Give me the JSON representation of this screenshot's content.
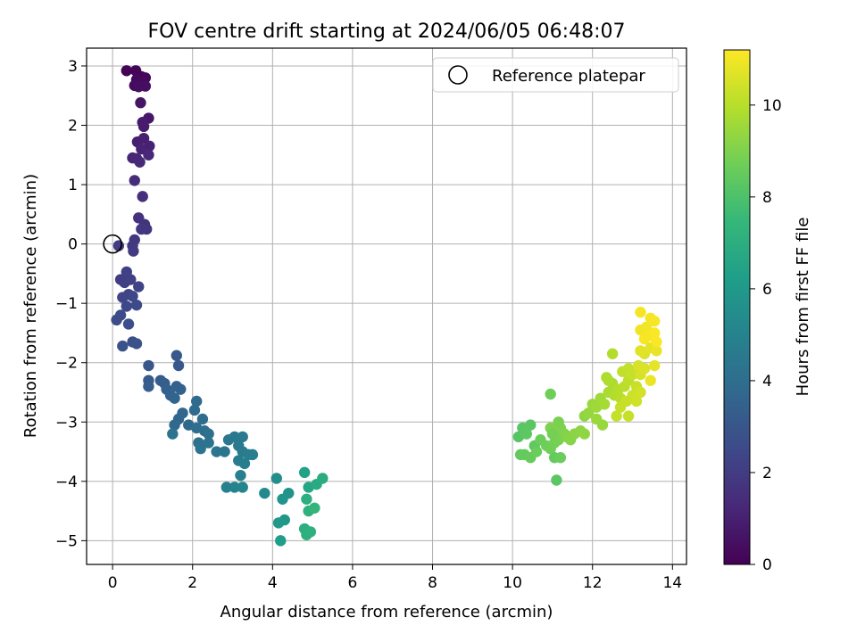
{
  "chart_data": {
    "type": "scatter",
    "title": "FOV centre drift starting at 2024/06/05 06:48:07",
    "xlabel": "Angular distance from reference (arcmin)",
    "ylabel": "Rotation from reference (arcmin)",
    "xlim": [
      -0.65,
      14.35
    ],
    "ylim": [
      -5.4,
      3.3
    ],
    "xticks": [
      0,
      2,
      4,
      6,
      8,
      10,
      12,
      14
    ],
    "yticks": [
      3,
      2,
      1,
      0,
      -1,
      -2,
      -3,
      -4,
      -5
    ],
    "grid": true,
    "legend": {
      "placement": "top-right",
      "entries": [
        "Reference platepar"
      ]
    },
    "reference_point": {
      "x": 0,
      "y": 0
    },
    "colorbar": {
      "label": "Hours from first FF file",
      "range": [
        0,
        11.2
      ],
      "ticks": [
        0,
        2,
        4,
        6,
        8,
        10
      ],
      "colormap": "viridis"
    },
    "series": [
      {
        "marker_color": "by hours (viridis)",
        "points": [
          [
            0.35,
            2.92,
            0.05
          ],
          [
            0.58,
            2.92,
            0.1
          ],
          [
            0.72,
            2.82,
            0.15
          ],
          [
            0.82,
            2.8,
            0.2
          ],
          [
            0.6,
            2.77,
            0.25
          ],
          [
            0.75,
            2.72,
            0.3
          ],
          [
            0.55,
            2.67,
            0.35
          ],
          [
            0.65,
            2.65,
            0.4
          ],
          [
            0.82,
            2.66,
            0.45
          ],
          [
            0.7,
            2.38,
            0.6
          ],
          [
            0.9,
            2.12,
            0.7
          ],
          [
            0.75,
            2.05,
            0.8
          ],
          [
            0.78,
            1.98,
            0.85
          ],
          [
            0.62,
            1.72,
            0.95
          ],
          [
            0.78,
            1.78,
            1.0
          ],
          [
            0.92,
            1.65,
            1.05
          ],
          [
            0.72,
            1.6,
            1.1
          ],
          [
            0.5,
            1.45,
            1.15
          ],
          [
            0.6,
            1.44,
            1.2
          ],
          [
            0.9,
            1.5,
            1.25
          ],
          [
            0.68,
            1.38,
            1.3
          ],
          [
            0.55,
            1.07,
            1.4
          ],
          [
            0.75,
            0.8,
            1.5
          ],
          [
            0.65,
            0.44,
            1.6
          ],
          [
            0.8,
            0.33,
            1.7
          ],
          [
            0.85,
            0.25,
            1.75
          ],
          [
            0.72,
            0.25,
            1.8
          ],
          [
            0.55,
            0.07,
            1.85
          ],
          [
            0.5,
            -0.03,
            1.9
          ],
          [
            0.52,
            -0.12,
            1.95
          ],
          [
            0.15,
            -0.03,
            2.0
          ],
          [
            0.2,
            -0.6,
            2.05
          ],
          [
            0.3,
            -0.65,
            2.1
          ],
          [
            0.45,
            -0.6,
            2.15
          ],
          [
            0.35,
            -0.47,
            2.2
          ],
          [
            0.65,
            -0.72,
            2.25
          ],
          [
            0.4,
            -0.85,
            2.3
          ],
          [
            0.25,
            -0.9,
            2.35
          ],
          [
            0.5,
            -0.88,
            2.4
          ],
          [
            0.35,
            -1.05,
            2.45
          ],
          [
            0.6,
            -1.03,
            2.5
          ],
          [
            0.2,
            -1.2,
            2.55
          ],
          [
            0.1,
            -1.28,
            2.6
          ],
          [
            0.4,
            -1.35,
            2.65
          ],
          [
            0.5,
            -1.65,
            2.75
          ],
          [
            0.6,
            -1.68,
            2.8
          ],
          [
            0.25,
            -1.72,
            2.85
          ],
          [
            0.9,
            -2.05,
            3.0
          ],
          [
            1.6,
            -1.88,
            3.05
          ],
          [
            1.65,
            -2.05,
            3.1
          ],
          [
            1.2,
            -2.3,
            3.2
          ],
          [
            0.9,
            -2.3,
            3.25
          ],
          [
            0.9,
            -2.4,
            3.3
          ],
          [
            1.3,
            -2.35,
            3.35
          ],
          [
            1.35,
            -2.45,
            3.4
          ],
          [
            1.45,
            -2.55,
            3.45
          ],
          [
            1.6,
            -2.4,
            3.5
          ],
          [
            1.7,
            -2.45,
            3.55
          ],
          [
            1.55,
            -2.6,
            3.6
          ],
          [
            1.75,
            -2.85,
            3.65
          ],
          [
            1.65,
            -2.95,
            3.7
          ],
          [
            1.55,
            -3.05,
            3.75
          ],
          [
            1.9,
            -3.05,
            3.8
          ],
          [
            2.1,
            -2.65,
            3.85
          ],
          [
            2.05,
            -2.8,
            3.9
          ],
          [
            2.25,
            -2.95,
            3.95
          ],
          [
            2.1,
            -3.1,
            4.0
          ],
          [
            2.3,
            -3.15,
            4.05
          ],
          [
            2.4,
            -3.2,
            4.1
          ],
          [
            2.15,
            -3.35,
            4.15
          ],
          [
            2.2,
            -3.45,
            4.2
          ],
          [
            1.5,
            -3.2,
            4.25
          ],
          [
            2.4,
            -3.35,
            4.3
          ],
          [
            2.6,
            -3.5,
            4.35
          ],
          [
            2.8,
            -3.5,
            4.4
          ],
          [
            2.9,
            -3.3,
            4.45
          ],
          [
            3.05,
            -3.25,
            4.5
          ],
          [
            3.25,
            -3.25,
            4.55
          ],
          [
            3.15,
            -3.4,
            4.6
          ],
          [
            3.25,
            -3.5,
            4.65
          ],
          [
            3.15,
            -3.65,
            4.7
          ],
          [
            3.4,
            -3.55,
            4.75
          ],
          [
            3.5,
            -3.55,
            4.8
          ],
          [
            3.3,
            -3.7,
            4.85
          ],
          [
            3.2,
            -3.9,
            4.9
          ],
          [
            2.85,
            -4.1,
            4.95
          ],
          [
            3.05,
            -4.1,
            5.0
          ],
          [
            3.25,
            -4.1,
            5.1
          ],
          [
            3.8,
            -4.2,
            5.3
          ],
          [
            4.1,
            -3.95,
            5.5
          ],
          [
            4.4,
            -4.2,
            5.7
          ],
          [
            4.25,
            -4.3,
            5.8
          ],
          [
            4.3,
            -4.65,
            5.9
          ],
          [
            4.15,
            -4.7,
            6.0
          ],
          [
            4.2,
            -5.0,
            6.2
          ],
          [
            4.8,
            -3.85,
            6.4
          ],
          [
            4.9,
            -4.1,
            6.6
          ],
          [
            5.1,
            -4.05,
            6.8
          ],
          [
            5.25,
            -3.95,
            6.9
          ],
          [
            4.85,
            -4.3,
            7.0
          ],
          [
            4.9,
            -4.5,
            7.1
          ],
          [
            5.05,
            -4.45,
            7.3
          ],
          [
            4.8,
            -4.8,
            7.0
          ],
          [
            4.85,
            -4.9,
            7.05
          ],
          [
            4.95,
            -4.85,
            7.1
          ],
          [
            10.15,
            -3.25,
            8.2
          ],
          [
            10.25,
            -3.1,
            8.25
          ],
          [
            10.45,
            -3.05,
            8.3
          ],
          [
            10.35,
            -3.2,
            8.35
          ],
          [
            10.55,
            -3.4,
            8.4
          ],
          [
            10.2,
            -3.55,
            8.45
          ],
          [
            10.3,
            -3.55,
            8.5
          ],
          [
            10.45,
            -3.6,
            8.55
          ],
          [
            10.6,
            -3.5,
            8.6
          ],
          [
            10.7,
            -3.3,
            8.65
          ],
          [
            10.85,
            -3.4,
            8.7
          ],
          [
            10.95,
            -3.45,
            8.75
          ],
          [
            11.05,
            -3.35,
            8.8
          ],
          [
            11.15,
            -3.3,
            8.85
          ],
          [
            11.2,
            -3.25,
            8.9
          ],
          [
            11.1,
            -3.15,
            8.95
          ],
          [
            11.2,
            -3.1,
            9.0
          ],
          [
            11.3,
            -3.2,
            9.05
          ],
          [
            11.35,
            -3.25,
            9.1
          ],
          [
            11.45,
            -3.3,
            9.15
          ],
          [
            11.55,
            -3.2,
            9.2
          ],
          [
            11.7,
            -3.15,
            9.25
          ],
          [
            11.8,
            -3.2,
            9.3
          ],
          [
            11.05,
            -3.6,
            8.5
          ],
          [
            11.2,
            -3.6,
            8.6
          ],
          [
            11.1,
            -3.98,
            8.3
          ],
          [
            10.95,
            -2.53,
            8.7
          ],
          [
            11.15,
            -3.0,
            8.9
          ],
          [
            10.95,
            -3.1,
            9.0
          ],
          [
            11.0,
            -3.2,
            8.8
          ],
          [
            11.8,
            -2.9,
            9.3
          ],
          [
            11.9,
            -2.85,
            9.4
          ],
          [
            12.0,
            -2.7,
            9.5
          ],
          [
            12.1,
            -2.75,
            9.55
          ],
          [
            12.2,
            -2.6,
            9.6
          ],
          [
            12.1,
            -2.95,
            9.5
          ],
          [
            12.25,
            -3.05,
            9.45
          ],
          [
            12.3,
            -2.7,
            9.7
          ],
          [
            12.4,
            -2.5,
            9.75
          ],
          [
            12.5,
            -2.35,
            9.8
          ],
          [
            12.35,
            -2.25,
            9.85
          ],
          [
            12.55,
            -2.55,
            9.9
          ],
          [
            12.65,
            -2.45,
            9.95
          ],
          [
            12.7,
            -2.6,
            10.0
          ],
          [
            12.8,
            -2.4,
            10.05
          ],
          [
            12.9,
            -2.3,
            10.1
          ],
          [
            12.75,
            -2.15,
            10.15
          ],
          [
            12.9,
            -2.1,
            10.2
          ],
          [
            13.0,
            -2.2,
            10.25
          ],
          [
            13.1,
            -2.4,
            10.3
          ],
          [
            13.0,
            -2.55,
            10.35
          ],
          [
            12.85,
            -2.65,
            10.3
          ],
          [
            12.7,
            -2.75,
            10.25
          ],
          [
            12.6,
            -2.9,
            10.2
          ],
          [
            12.9,
            -2.9,
            10.25
          ],
          [
            13.1,
            -2.65,
            10.4
          ],
          [
            13.2,
            -2.5,
            10.45
          ],
          [
            13.2,
            -2.2,
            10.5
          ],
          [
            13.15,
            -2.05,
            10.55
          ],
          [
            13.3,
            -2.1,
            10.6
          ],
          [
            13.3,
            -1.85,
            10.65
          ],
          [
            13.2,
            -1.8,
            10.7
          ],
          [
            13.45,
            -1.75,
            10.75
          ],
          [
            13.55,
            -2.05,
            10.8
          ],
          [
            13.6,
            -1.8,
            10.85
          ],
          [
            13.45,
            -2.3,
            10.9
          ],
          [
            13.2,
            -1.45,
            10.95
          ],
          [
            13.35,
            -1.4,
            11.0
          ],
          [
            13.45,
            -1.25,
            11.05
          ],
          [
            13.2,
            -1.15,
            11.05
          ],
          [
            13.55,
            -1.3,
            11.1
          ],
          [
            13.4,
            -1.55,
            11.1
          ],
          [
            13.55,
            -1.5,
            11.15
          ],
          [
            13.6,
            -1.65,
            11.15
          ],
          [
            13.3,
            -1.6,
            11.1
          ],
          [
            12.5,
            -1.85,
            9.9
          ],
          [
            12.4,
            -2.3,
            9.85
          ]
        ]
      }
    ]
  }
}
